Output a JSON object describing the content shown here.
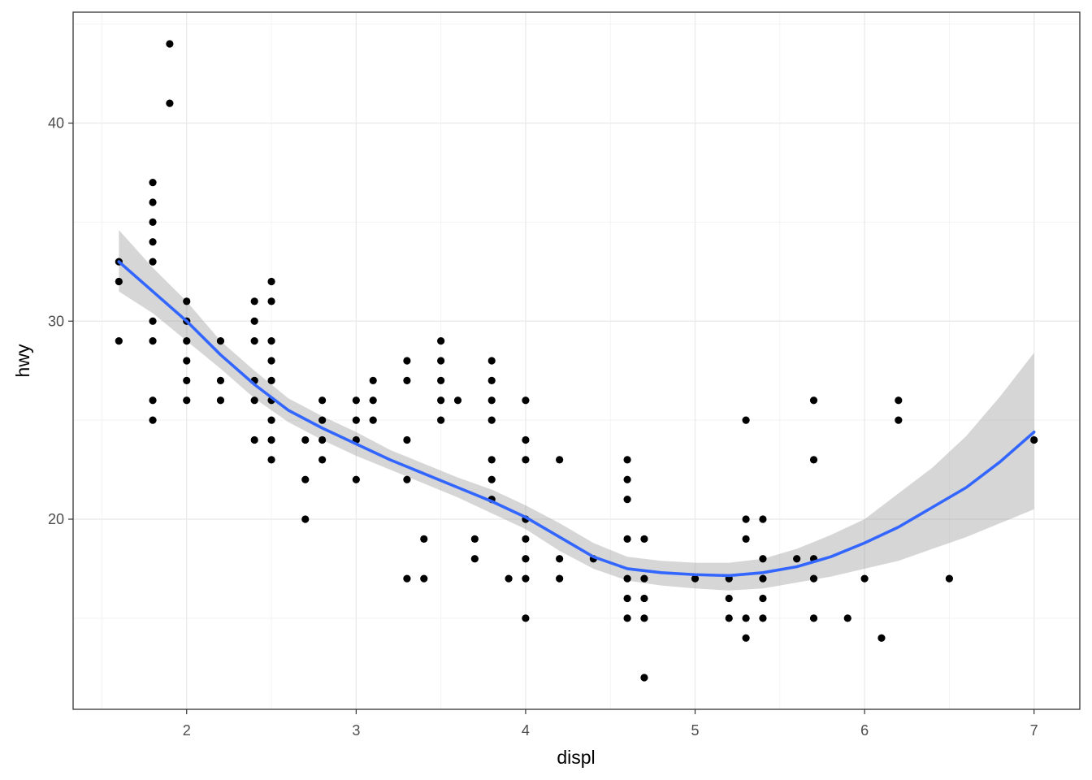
{
  "chart_data": {
    "type": "scatter",
    "title": "",
    "xlabel": "displ",
    "ylabel": "hwy",
    "xlim": [
      1.33,
      7.27
    ],
    "ylim": [
      10.4,
      45.6
    ],
    "x_ticks": [
      2,
      3,
      4,
      5,
      6,
      7
    ],
    "y_ticks": [
      20,
      30,
      40
    ],
    "x_minor_ticks": [
      1.5,
      2.5,
      3.5,
      4.5,
      5.5,
      6.5
    ],
    "y_minor_ticks": [
      15,
      25,
      35,
      45
    ],
    "grid": true,
    "legend": "none",
    "colors": {
      "points": "#000000",
      "smooth_line": "#3366FF",
      "ribbon": "#999999"
    },
    "series": [
      {
        "name": "points",
        "type": "scatter",
        "points": [
          [
            1.6,
            33
          ],
          [
            1.6,
            32
          ],
          [
            1.6,
            29
          ],
          [
            1.8,
            37
          ],
          [
            1.8,
            36
          ],
          [
            1.8,
            35
          ],
          [
            1.8,
            34
          ],
          [
            1.8,
            33
          ],
          [
            1.8,
            30
          ],
          [
            1.8,
            29
          ],
          [
            1.8,
            26
          ],
          [
            1.8,
            25
          ],
          [
            1.9,
            44
          ],
          [
            1.9,
            41
          ],
          [
            2.0,
            31
          ],
          [
            2.0,
            30
          ],
          [
            2.0,
            29
          ],
          [
            2.0,
            28
          ],
          [
            2.0,
            27
          ],
          [
            2.0,
            26
          ],
          [
            2.2,
            29
          ],
          [
            2.2,
            27
          ],
          [
            2.2,
            26
          ],
          [
            2.4,
            31
          ],
          [
            2.4,
            30
          ],
          [
            2.4,
            29
          ],
          [
            2.4,
            27
          ],
          [
            2.4,
            26
          ],
          [
            2.4,
            24
          ],
          [
            2.5,
            32
          ],
          [
            2.5,
            31
          ],
          [
            2.5,
            29
          ],
          [
            2.5,
            28
          ],
          [
            2.5,
            27
          ],
          [
            2.5,
            26
          ],
          [
            2.5,
            25
          ],
          [
            2.5,
            24
          ],
          [
            2.5,
            23
          ],
          [
            2.7,
            24
          ],
          [
            2.7,
            22
          ],
          [
            2.7,
            20
          ],
          [
            2.8,
            26
          ],
          [
            2.8,
            25
          ],
          [
            2.8,
            24
          ],
          [
            2.8,
            23
          ],
          [
            3.0,
            26
          ],
          [
            3.0,
            25
          ],
          [
            3.0,
            24
          ],
          [
            3.0,
            22
          ],
          [
            3.1,
            27
          ],
          [
            3.1,
            26
          ],
          [
            3.1,
            25
          ],
          [
            3.3,
            28
          ],
          [
            3.3,
            27
          ],
          [
            3.3,
            24
          ],
          [
            3.3,
            22
          ],
          [
            3.3,
            17
          ],
          [
            3.4,
            19
          ],
          [
            3.4,
            17
          ],
          [
            3.5,
            29
          ],
          [
            3.5,
            28
          ],
          [
            3.5,
            27
          ],
          [
            3.5,
            26
          ],
          [
            3.5,
            25
          ],
          [
            3.6,
            26
          ],
          [
            3.7,
            19
          ],
          [
            3.7,
            18
          ],
          [
            3.8,
            28
          ],
          [
            3.8,
            27
          ],
          [
            3.8,
            26
          ],
          [
            3.8,
            25
          ],
          [
            3.8,
            23
          ],
          [
            3.8,
            22
          ],
          [
            3.8,
            21
          ],
          [
            3.9,
            17
          ],
          [
            4.0,
            26
          ],
          [
            4.0,
            24
          ],
          [
            4.0,
            23
          ],
          [
            4.0,
            20
          ],
          [
            4.0,
            19
          ],
          [
            4.0,
            18
          ],
          [
            4.0,
            17
          ],
          [
            4.0,
            15
          ],
          [
            4.2,
            23
          ],
          [
            4.2,
            18
          ],
          [
            4.2,
            17
          ],
          [
            4.4,
            18
          ],
          [
            4.6,
            23
          ],
          [
            4.6,
            22
          ],
          [
            4.6,
            21
          ],
          [
            4.6,
            19
          ],
          [
            4.6,
            17
          ],
          [
            4.6,
            16
          ],
          [
            4.6,
            15
          ],
          [
            4.7,
            19
          ],
          [
            4.7,
            17
          ],
          [
            4.7,
            16
          ],
          [
            4.7,
            15
          ],
          [
            4.7,
            12
          ],
          [
            5.0,
            17
          ],
          [
            5.2,
            17
          ],
          [
            5.2,
            16
          ],
          [
            5.2,
            15
          ],
          [
            5.3,
            25
          ],
          [
            5.3,
            20
          ],
          [
            5.3,
            19
          ],
          [
            5.3,
            15
          ],
          [
            5.3,
            14
          ],
          [
            5.4,
            20
          ],
          [
            5.4,
            18
          ],
          [
            5.4,
            17
          ],
          [
            5.4,
            16
          ],
          [
            5.4,
            15
          ],
          [
            5.6,
            18
          ],
          [
            5.7,
            26
          ],
          [
            5.7,
            23
          ],
          [
            5.7,
            18
          ],
          [
            5.7,
            17
          ],
          [
            5.7,
            15
          ],
          [
            5.9,
            15
          ],
          [
            6.0,
            17
          ],
          [
            6.1,
            14
          ],
          [
            6.2,
            26
          ],
          [
            6.2,
            25
          ],
          [
            6.5,
            17
          ],
          [
            7.0,
            24
          ]
        ]
      },
      {
        "name": "loess smooth",
        "type": "line",
        "x": [
          1.6,
          1.8,
          2.0,
          2.2,
          2.4,
          2.6,
          2.8,
          3.0,
          3.2,
          3.4,
          3.6,
          3.8,
          4.0,
          4.2,
          4.4,
          4.6,
          4.8,
          5.0,
          5.2,
          5.4,
          5.6,
          5.8,
          6.0,
          6.2,
          6.4,
          6.6,
          6.8,
          7.0
        ],
        "y": [
          33.0,
          31.5,
          30.0,
          28.3,
          26.8,
          25.5,
          24.6,
          23.8,
          23.0,
          22.3,
          21.6,
          20.9,
          20.1,
          19.1,
          18.1,
          17.5,
          17.3,
          17.2,
          17.15,
          17.3,
          17.6,
          18.1,
          18.8,
          19.6,
          20.6,
          21.6,
          22.9,
          24.4
        ],
        "lower": [
          31.5,
          30.4,
          29.0,
          27.6,
          26.1,
          24.9,
          24.0,
          23.2,
          22.5,
          21.8,
          21.1,
          20.3,
          19.5,
          18.4,
          17.5,
          16.9,
          16.65,
          16.5,
          16.4,
          16.5,
          16.8,
          17.1,
          17.5,
          17.9,
          18.5,
          19.1,
          19.8,
          20.5
        ],
        "upper": [
          34.6,
          32.7,
          31.0,
          29.0,
          27.5,
          26.1,
          25.2,
          24.4,
          23.5,
          22.8,
          22.1,
          21.5,
          20.7,
          19.8,
          18.8,
          18.1,
          17.9,
          17.8,
          17.8,
          18.0,
          18.5,
          19.2,
          20.0,
          21.3,
          22.6,
          24.2,
          26.2,
          28.4
        ]
      }
    ]
  }
}
